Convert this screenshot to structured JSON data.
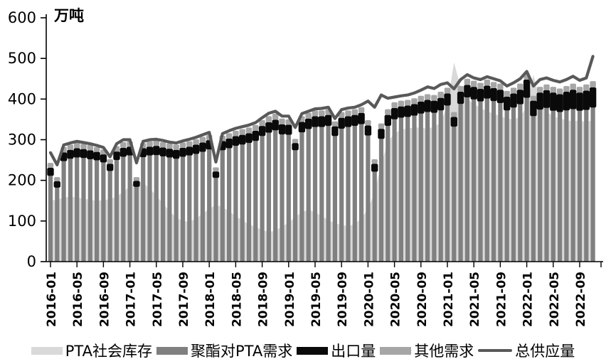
{
  "chart_data": {
    "type": "combo-stacked-bar-area-line",
    "title": "",
    "unit_label": "万吨",
    "ylabel": "万吨",
    "ylim": [
      0,
      600
    ],
    "y_ticks": [
      0,
      100,
      200,
      300,
      400,
      500,
      600
    ],
    "grid": false,
    "legend_position": "bottom",
    "x_start_month": "2016-01",
    "x_tick_labels": [
      "2016-01",
      "2016-05",
      "2016-09",
      "2017-01",
      "2017-05",
      "2017-09",
      "2018-01",
      "2018-05",
      "2018-09",
      "2019-01",
      "2019-05",
      "2019-09",
      "2020-01",
      "2020-05",
      "2020-09",
      "2021-01",
      "2021-05",
      "2021-09",
      "2022-01",
      "2022-05",
      "2022-09"
    ],
    "series": [
      {
        "name": "PTA社会库存",
        "type": "area",
        "color": "#d9d9d9",
        "values": [
          150,
          153,
          157,
          160,
          158,
          155,
          152,
          150,
          151,
          154,
          160,
          172,
          185,
          200,
          194,
          180,
          162,
          143,
          124,
          108,
          100,
          98,
          106,
          118,
          130,
          140,
          134,
          124,
          112,
          101,
          92,
          85,
          78,
          73,
          76,
          86,
          96,
          110,
          122,
          128,
          122,
          112,
          102,
          95,
          90,
          87,
          93,
          106,
          130,
          170,
          240,
          295,
          315,
          325,
          328,
          330,
          330,
          327,
          332,
          342,
          385,
          490,
          430,
          400,
          388,
          378,
          370,
          364,
          358,
          352,
          350,
          356,
          380,
          460,
          395,
          368,
          358,
          352,
          348,
          345,
          348,
          342,
          350
        ]
      },
      {
        "name": "聚酯对PTA需求",
        "type": "bar",
        "color": "#808080",
        "values": [
          211,
          182,
          247,
          253,
          256,
          255,
          252,
          249,
          244,
          223,
          250,
          258,
          261,
          184,
          257,
          261,
          262,
          259,
          256,
          253,
          258,
          261,
          265,
          270,
          276,
          206,
          274,
          279,
          285,
          288,
          292,
          297,
          309,
          317,
          323,
          313,
          312,
          274,
          318,
          326,
          331,
          331,
          334,
          309,
          327,
          331,
          334,
          338,
          310,
          221,
          302,
          334,
          350,
          354,
          356,
          359,
          364,
          368,
          366,
          372,
          384,
          332,
          388,
          404,
          399,
          394,
          401,
          395,
          390,
          372,
          379,
          387,
          403,
          358,
          374,
          378,
          371,
          368,
          372,
          375,
          371,
          373,
          379
        ]
      },
      {
        "name": "出口量",
        "type": "bar",
        "color": "#0a0a0a",
        "values": [
          20,
          16,
          22,
          22,
          23,
          22,
          22,
          21,
          20,
          18,
          21,
          22,
          22,
          15,
          22,
          22,
          23,
          22,
          22,
          22,
          22,
          22,
          23,
          23,
          23,
          16,
          23,
          24,
          24,
          24,
          24,
          25,
          25,
          26,
          26,
          25,
          25,
          18,
          26,
          26,
          27,
          27,
          27,
          24,
          27,
          27,
          27,
          28,
          25,
          20,
          25,
          27,
          28,
          28,
          28,
          29,
          30,
          30,
          30,
          31,
          30,
          24,
          30,
          31,
          31,
          31,
          32,
          32,
          33,
          34,
          35,
          36,
          45,
          38,
          42,
          44,
          45,
          44,
          46,
          48,
          45,
          48,
          50
        ]
      },
      {
        "name": "其他需求",
        "type": "bar",
        "color": "#a6a6a6",
        "values": [
          12,
          10,
          13,
          13,
          14,
          13,
          13,
          12,
          12,
          11,
          13,
          14,
          13,
          9,
          13,
          13,
          13,
          13,
          13,
          13,
          13,
          13,
          13,
          14,
          13,
          10,
          13,
          13,
          13,
          14,
          14,
          14,
          14,
          15,
          15,
          14,
          13,
          10,
          14,
          14,
          14,
          14,
          14,
          12,
          14,
          14,
          14,
          14,
          13,
          11,
          13,
          14,
          14,
          14,
          14,
          14,
          14,
          14,
          14,
          15,
          14,
          12,
          14,
          15,
          15,
          15,
          15,
          15,
          15,
          14,
          14,
          15,
          14,
          12,
          14,
          14,
          14,
          14,
          14,
          15,
          14,
          15,
          15
        ]
      },
      {
        "name": "总供应量",
        "type": "line",
        "color": "#595959",
        "values": [
          268,
          238,
          287,
          292,
          296,
          293,
          290,
          286,
          281,
          258,
          290,
          300,
          300,
          243,
          296,
          300,
          301,
          298,
          294,
          292,
          297,
          301,
          306,
          312,
          318,
          245,
          315,
          322,
          328,
          332,
          336,
          342,
          354,
          365,
          370,
          358,
          358,
          330,
          364,
          370,
          376,
          377,
          380,
          352,
          374,
          378,
          380,
          386,
          395,
          380,
          410,
          402,
          405,
          408,
          410,
          415,
          422,
          430,
          426,
          436,
          440,
          425,
          448,
          460,
          452,
          448,
          455,
          450,
          445,
          432,
          440,
          450,
          468,
          432,
          448,
          452,
          446,
          442,
          448,
          456,
          446,
          452,
          505
        ]
      }
    ]
  }
}
